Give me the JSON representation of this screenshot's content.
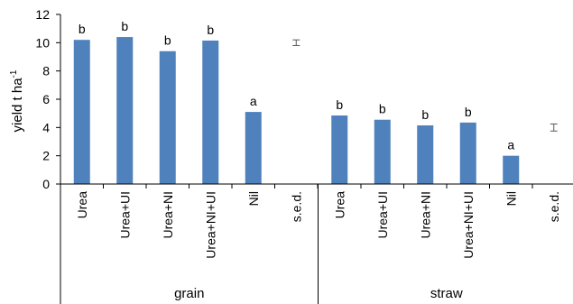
{
  "chart_data": {
    "type": "bar",
    "ylabel": "yield t ha",
    "ylabel_superscript": "-1",
    "ylim": [
      0,
      12
    ],
    "yticks": [
      0,
      2,
      4,
      6,
      8,
      10,
      12
    ],
    "grid": false,
    "legend": "none",
    "groups": [
      {
        "label": "grain",
        "categories": [
          "Urea",
          "Urea+UI",
          "Urea+NI",
          "Urea+NI+UI",
          "Nil",
          "s.e.d."
        ],
        "values": [
          10.2,
          10.4,
          9.4,
          10.15,
          5.1,
          null
        ],
        "significance": [
          "b",
          "b",
          "b",
          "b",
          "a",
          ""
        ],
        "sed": {
          "center": 10.0,
          "half_width": 0.2
        }
      },
      {
        "label": "straw",
        "categories": [
          "Urea",
          "Urea+UI",
          "Urea+NI",
          "Urea+NI+UI",
          "Nil",
          "s.e.d."
        ],
        "values": [
          4.85,
          4.55,
          4.15,
          4.35,
          2.0,
          null
        ],
        "significance": [
          "b",
          "b",
          "b",
          "b",
          "a",
          ""
        ],
        "sed": {
          "center": 4.0,
          "half_width": 0.25
        }
      }
    ],
    "colors": {
      "bar": "#4f81bd",
      "axis": "#000000",
      "sed": "#595959"
    }
  }
}
